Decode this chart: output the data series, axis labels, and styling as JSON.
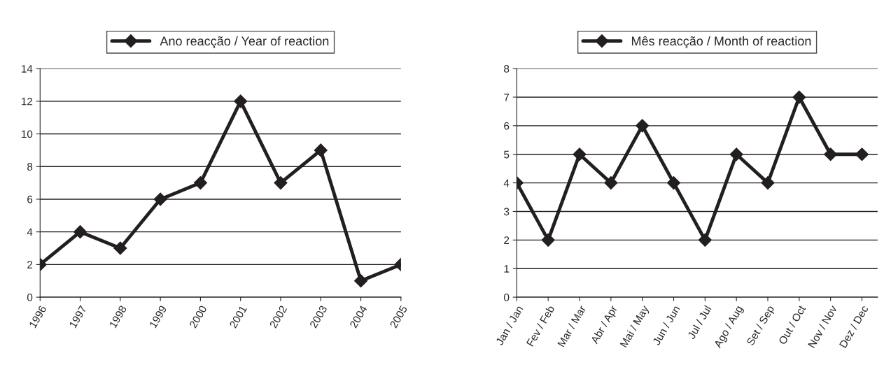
{
  "chart_data": [
    {
      "type": "line",
      "categories": [
        "1996",
        "1997",
        "1998",
        "1999",
        "2000",
        "2001",
        "2002",
        "2003",
        "2004",
        "2005"
      ],
      "series": [
        {
          "name": "Ano reacção / Year of reaction",
          "color": "#231f20",
          "values": [
            2,
            4,
            3,
            6,
            7,
            12,
            7,
            9,
            1,
            2
          ]
        }
      ],
      "ylim": [
        0,
        14
      ],
      "yticks": [
        0,
        2,
        4,
        6,
        8,
        10,
        12,
        14
      ],
      "grid": "y",
      "legend": "top",
      "marker": "diamond",
      "line_style": "solid"
    },
    {
      "type": "line",
      "categories": [
        "Jan / Jan",
        "Fev / Feb",
        "Mar / Mar",
        "Abr / Apr",
        "Mai / May",
        "Jun / Jun",
        "Jul / Jul",
        "Ago / Aug",
        "Set / Sep",
        "Out / Oct",
        "Nov / Nov",
        "Dez / Dec"
      ],
      "series": [
        {
          "name": "Mês reacção / Month of reaction",
          "color": "#231f20",
          "values": [
            4,
            2,
            5,
            4,
            6,
            4,
            2,
            5,
            4,
            7,
            5,
            5
          ]
        }
      ],
      "ylim": [
        0,
        8
      ],
      "yticks": [
        0,
        1,
        2,
        3,
        4,
        5,
        6,
        7,
        8
      ],
      "grid": "y",
      "legend": "top",
      "marker": "diamond",
      "line_style": "solid"
    }
  ]
}
